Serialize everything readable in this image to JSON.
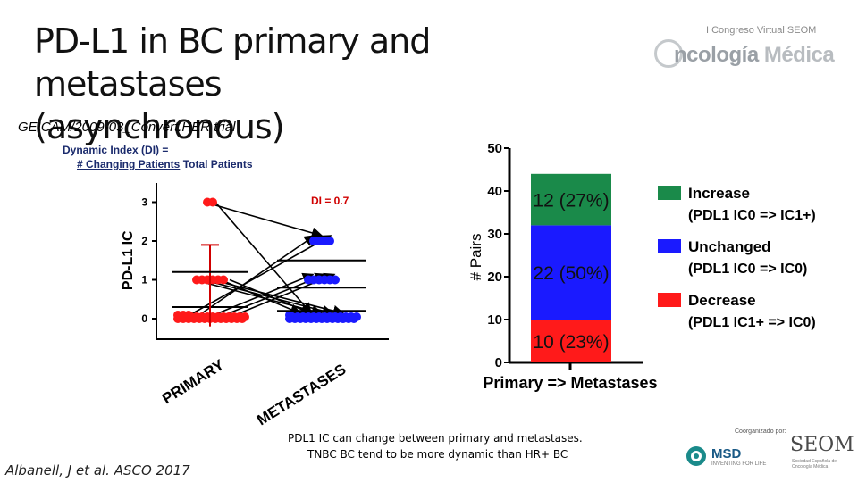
{
  "slide": {
    "title_line1": "PD-L1 in BC primary and metastases",
    "title_line2": "(asynchronous)",
    "trial": "GEICAM/2009-03_Convert.HER trial",
    "di_line1": "Dynamic Index (DI) =",
    "di_numerator": "# Changing Patients",
    "di_denominator": "Total Patients",
    "caption_line1": "PDL1 IC can change between primary and metastases.",
    "caption_line2": "TNBC BC tend to be more dynamic than HR+ BC",
    "citation": "Albanell, J et al. ASCO 2017",
    "congress_sub": "I Congreso Virtual SEOM",
    "congress_main_a": "ncología",
    "congress_main_b": "Médica",
    "organizer_label": "Coorganizado por:",
    "msd_name": "MSD",
    "msd_sub": "INVENTING FOR LIFE",
    "seom_name": "SEOM",
    "seom_sub": "Sociedad Española de Oncología Médica"
  },
  "colors": {
    "red": "#ff1a1a",
    "blue": "#1a1aff",
    "green": "#1a8a4a",
    "bar_red": "#ff1a1a",
    "bar_blue": "#1a1aff"
  },
  "chart_data": [
    {
      "type": "scatter",
      "ylabel": "PD-L1 IC",
      "categories": [
        "PRIMARY",
        "METASTASES"
      ],
      "ylim": [
        0,
        3
      ],
      "yticks": [
        "0",
        "1",
        "2",
        "3"
      ],
      "annotation": "DI = 0.7",
      "series": [
        {
          "category": "PRIMARY",
          "color": "red",
          "values": [
            3,
            3,
            1,
            1,
            1,
            1,
            1,
            1,
            0,
            0,
            0,
            0,
            0,
            0,
            0,
            0,
            0,
            0,
            0,
            0,
            0,
            0,
            0,
            0,
            0,
            0,
            0,
            0,
            0,
            0,
            0,
            0,
            0,
            0,
            0,
            0,
            0
          ]
        },
        {
          "category": "METASTASES",
          "color": "blue",
          "values": [
            2,
            2,
            2,
            2,
            1,
            1,
            1,
            1,
            1,
            1,
            0,
            0,
            0,
            0,
            0,
            0,
            0,
            0,
            0,
            0,
            0,
            0,
            0,
            0,
            0,
            0,
            0,
            0,
            0,
            0,
            0,
            0,
            0,
            0,
            0,
            0,
            0
          ]
        }
      ],
      "summary_lines": [
        {
          "category": "PRIMARY",
          "mean": 0.3,
          "error_low": -0.2,
          "error_high": 1.9
        },
        {
          "category": "METASTASES",
          "mean": 0.8,
          "error_low": 0.2,
          "error_high": 1.5
        }
      ],
      "arrows": [
        {
          "from": 3,
          "to": 2
        },
        {
          "from": 3,
          "to": 0
        },
        {
          "from": 1,
          "to": 0
        },
        {
          "from": 1,
          "to": 0
        },
        {
          "from": 1,
          "to": 0
        },
        {
          "from": 1,
          "to": 0
        },
        {
          "from": 1,
          "to": 0
        },
        {
          "from": 0,
          "to": 2
        },
        {
          "from": 0,
          "to": 2
        },
        {
          "from": 0,
          "to": 1
        },
        {
          "from": 0,
          "to": 1
        },
        {
          "from": 0,
          "to": 1
        }
      ]
    },
    {
      "type": "bar",
      "stacked": true,
      "xlabel": "Primary => Metastases",
      "ylabel": "# Pairs",
      "ylim": [
        0,
        50
      ],
      "yticks": [
        "0",
        "10",
        "20",
        "30",
        "40",
        "50"
      ],
      "series": [
        {
          "name": "Decrease",
          "value": 10,
          "label": "10 (23%)",
          "color": "red"
        },
        {
          "name": "Unchanged",
          "value": 22,
          "label": "22 (50%)",
          "color": "blue"
        },
        {
          "name": "Increase",
          "value": 12,
          "label": "12 (27%)",
          "color": "green"
        }
      ],
      "legend": [
        {
          "name": "Increase",
          "detail": "(PDL1 IC0 => IC1+)",
          "color": "green"
        },
        {
          "name": "Unchanged",
          "detail": "(PDL1 IC0 => IC0)",
          "color": "blue"
        },
        {
          "name": "Decrease",
          "detail": "(PDL1 IC1+ => IC0)",
          "color": "red"
        }
      ]
    }
  ]
}
